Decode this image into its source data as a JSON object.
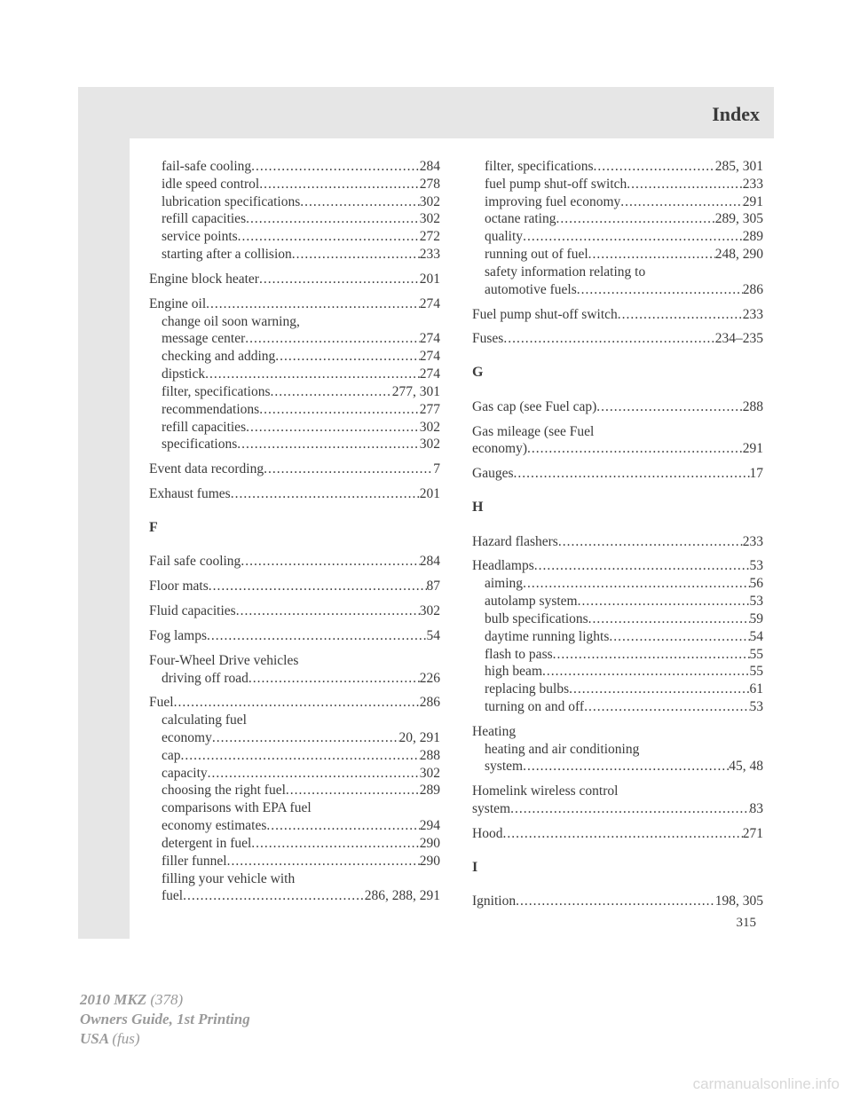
{
  "header": {
    "title": "Index"
  },
  "page_number": "315",
  "footer": {
    "line1a": "2010 MKZ",
    "line1b": "(378)",
    "line2": "Owners Guide, 1st Printing",
    "line3a": "USA",
    "line3b": "(fus)"
  },
  "watermark": "carmanualsonline.info",
  "left_col": [
    {
      "label": "fail-safe cooling",
      "page": "284",
      "sub": true
    },
    {
      "label": "idle speed control",
      "page": "278",
      "sub": true
    },
    {
      "label": "lubrication specifications",
      "page": "302",
      "sub": true
    },
    {
      "label": "refill capacities",
      "page": "302",
      "sub": true
    },
    {
      "label": "service points",
      "page": "272",
      "sub": true
    },
    {
      "label": "starting after a collision",
      "page": "233",
      "sub": true
    },
    {
      "gap": true
    },
    {
      "label": "Engine block heater",
      "page": "201"
    },
    {
      "gap": true
    },
    {
      "label": "Engine oil",
      "page": "274"
    },
    {
      "label": "change oil soon warning,",
      "sub": true,
      "nowrap": true
    },
    {
      "label": "message center",
      "page": "274",
      "sub": true
    },
    {
      "label": "checking and adding",
      "page": "274",
      "sub": true
    },
    {
      "label": "dipstick",
      "page": "274",
      "sub": true
    },
    {
      "label": "filter, specifications",
      "page": "277, 301",
      "sub": true
    },
    {
      "label": "recommendations",
      "page": "277",
      "sub": true
    },
    {
      "label": "refill capacities",
      "page": "302",
      "sub": true
    },
    {
      "label": "specifications",
      "page": "302",
      "sub": true
    },
    {
      "gap": true
    },
    {
      "label": "Event data recording",
      "page": "7"
    },
    {
      "gap": true
    },
    {
      "label": "Exhaust fumes",
      "page": "201"
    },
    {
      "section": "F"
    },
    {
      "label": "Fail safe cooling",
      "page": "284"
    },
    {
      "gap": true
    },
    {
      "label": "Floor mats",
      "page": "87"
    },
    {
      "gap": true
    },
    {
      "label": "Fluid capacities",
      "page": "302"
    },
    {
      "gap": true
    },
    {
      "label": "Fog lamps",
      "page": "54"
    },
    {
      "gap": true
    },
    {
      "label": "Four-Wheel Drive vehicles",
      "nowrap": true
    },
    {
      "label": "driving off road",
      "page": "226",
      "sub": true
    },
    {
      "gap": true
    },
    {
      "label": "Fuel",
      "page": "286"
    },
    {
      "label": "calculating fuel",
      "sub": true,
      "nowrap": true
    },
    {
      "label": "economy",
      "page": "20, 291",
      "sub": true
    },
    {
      "label": "cap",
      "page": "288",
      "sub": true
    },
    {
      "label": "capacity",
      "page": "302",
      "sub": true
    },
    {
      "label": "choosing the right fuel",
      "page": "289",
      "sub": true
    },
    {
      "label": "comparisons with EPA fuel",
      "sub": true,
      "nowrap": true
    },
    {
      "label": "economy estimates",
      "page": "294",
      "sub": true
    },
    {
      "label": "detergent in fuel",
      "page": "290",
      "sub": true
    },
    {
      "label": "filler funnel",
      "page": "290",
      "sub": true
    },
    {
      "label": "filling your vehicle with",
      "sub": true,
      "nowrap": true
    },
    {
      "label": "fuel",
      "page": "286, 288, 291",
      "sub": true
    }
  ],
  "right_col": [
    {
      "label": "filter, specifications",
      "page": "285, 301",
      "sub": true
    },
    {
      "label": "fuel pump shut-off switch",
      "page": "233",
      "sub": true
    },
    {
      "label": "improving fuel economy",
      "page": "291",
      "sub": true
    },
    {
      "label": "octane rating",
      "page": "289, 305",
      "sub": true
    },
    {
      "label": "quality",
      "page": "289",
      "sub": true
    },
    {
      "label": "running out of fuel",
      "page": "248, 290",
      "sub": true
    },
    {
      "label": "safety information relating to",
      "sub": true,
      "nowrap": true
    },
    {
      "label": "automotive fuels",
      "page": "286",
      "sub": true
    },
    {
      "gap": true
    },
    {
      "label": "Fuel pump shut-off switch",
      "page": "233"
    },
    {
      "gap": true
    },
    {
      "label": "Fuses",
      "page": "234–235"
    },
    {
      "section": "G"
    },
    {
      "label": "Gas cap (see Fuel cap)",
      "page": "288"
    },
    {
      "gap": true
    },
    {
      "label": "Gas mileage (see Fuel",
      "nowrap": true
    },
    {
      "label": "economy)",
      "page": "291"
    },
    {
      "gap": true
    },
    {
      "label": "Gauges",
      "page": "17"
    },
    {
      "section": "H"
    },
    {
      "label": "Hazard flashers",
      "page": "233"
    },
    {
      "gap": true
    },
    {
      "label": "Headlamps",
      "page": "53"
    },
    {
      "label": "aiming",
      "page": "56",
      "sub": true
    },
    {
      "label": "autolamp system",
      "page": "53",
      "sub": true
    },
    {
      "label": "bulb specifications",
      "page": "59",
      "sub": true
    },
    {
      "label": "daytime running lights",
      "page": "54",
      "sub": true
    },
    {
      "label": "flash to pass",
      "page": "55",
      "sub": true
    },
    {
      "label": "high beam",
      "page": "55",
      "sub": true
    },
    {
      "label": "replacing bulbs",
      "page": "61",
      "sub": true
    },
    {
      "label": "turning on and off",
      "page": "53",
      "sub": true
    },
    {
      "gap": true
    },
    {
      "label": "Heating",
      "nowrap": true
    },
    {
      "label": "heating and air conditioning",
      "sub": true,
      "nowrap": true
    },
    {
      "label": "system",
      "page": "45, 48",
      "sub": true
    },
    {
      "gap": true
    },
    {
      "label": "Homelink wireless control",
      "nowrap": true
    },
    {
      "label": "system",
      "page": "83"
    },
    {
      "gap": true
    },
    {
      "label": "Hood",
      "page": "271"
    },
    {
      "section": "I"
    },
    {
      "label": "Ignition",
      "page": "198, 305"
    }
  ]
}
